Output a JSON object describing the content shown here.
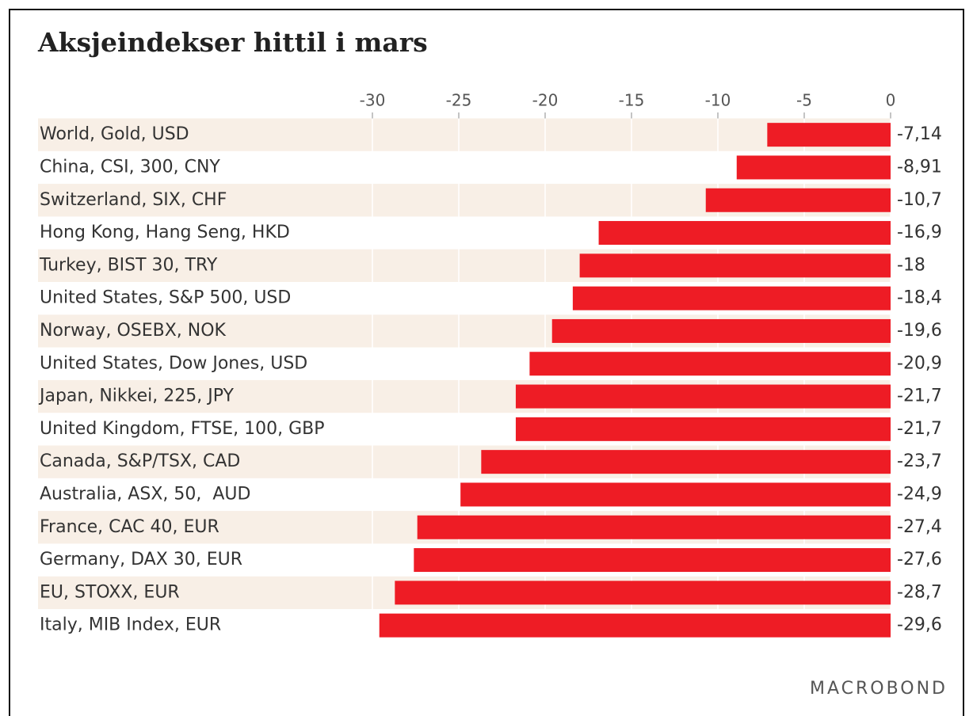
{
  "chart_data": {
    "type": "barh",
    "title": "Aksjeindekser hittil i mars",
    "categories": [
      "World, Gold, USD",
      "China, CSI, 300, CNY",
      "Switzerland, SIX, CHF",
      "Hong Kong, Hang Seng, HKD",
      "Turkey, BIST 30, TRY",
      "United States, S&P 500, USD",
      "Norway, OSEBX, NOK",
      "United States, Dow Jones, USD",
      "Japan, Nikkei, 225, JPY",
      "United Kingdom, FTSE, 100, GBP",
      "Canada, S&P/TSX, CAD",
      "Australia, ASX, 50,  AUD",
      "France, CAC 40, EUR",
      "Germany, DAX 30, EUR",
      "EU, STOXX, EUR",
      "Italy, MIB Index, EUR"
    ],
    "values": [
      -7.14,
      -8.91,
      -10.7,
      -16.9,
      -18,
      -18.4,
      -19.6,
      -20.9,
      -21.7,
      -21.7,
      -23.7,
      -24.9,
      -27.4,
      -27.6,
      -28.7,
      -29.6
    ],
    "value_labels": [
      "-7,14",
      "-8,91",
      "-10,7",
      "-16,9",
      "-18",
      "-18,4",
      "-19,6",
      "-20,9",
      "-21,7",
      "-21,7",
      "-23,7",
      "-24,9",
      "-27,4",
      "-27,6",
      "-28,7",
      "-29,6"
    ],
    "color": "#ee1c25",
    "xlim": [
      -30,
      0
    ],
    "xticks": [
      -30,
      -25,
      -20,
      -15,
      -10,
      -5,
      0
    ],
    "grid": true,
    "source": "MACROBOND"
  }
}
